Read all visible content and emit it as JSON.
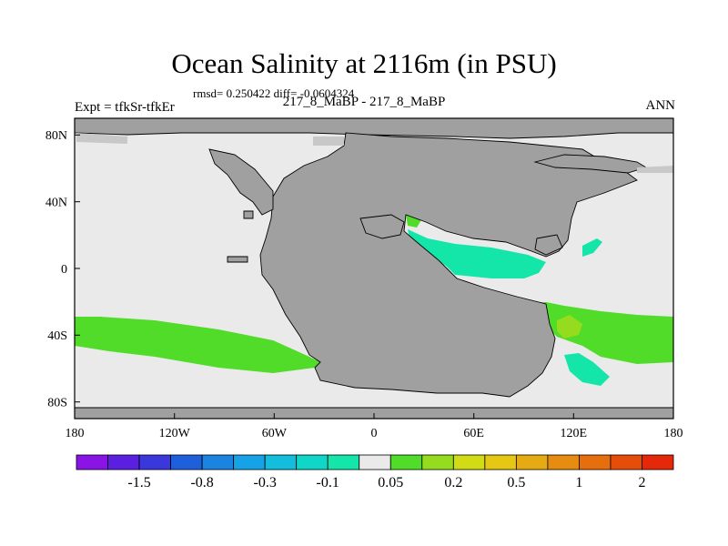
{
  "title": "Ocean Salinity at 2116m (in PSU)",
  "stats": "rmsd= 0.250422 diff= -0.0604324",
  "left_label": "Expt = tfkSr-tfkEr",
  "center_label": "217_8_MaBP - 217_8_MaBP",
  "right_label": "ANN",
  "axes": {
    "x_ticks": [
      {
        "value": -180,
        "label": "180"
      },
      {
        "value": -120,
        "label": "120W"
      },
      {
        "value": -60,
        "label": "60W"
      },
      {
        "value": 0,
        "label": "0"
      },
      {
        "value": 60,
        "label": "60E"
      },
      {
        "value": 120,
        "label": "120E"
      },
      {
        "value": 180,
        "label": "180"
      }
    ],
    "y_ticks": [
      {
        "value": 80,
        "label": "80N"
      },
      {
        "value": 40,
        "label": "40N"
      },
      {
        "value": 0,
        "label": "0"
      },
      {
        "value": -40,
        "label": "40S"
      },
      {
        "value": -80,
        "label": "80S"
      }
    ],
    "lon_range": [
      -180,
      180
    ],
    "lat_range": [
      -90,
      90
    ]
  },
  "colorbar": {
    "colors": [
      "#8a14e6",
      "#5a1fe0",
      "#3a38dc",
      "#1e5fdc",
      "#1a84e0",
      "#16a2e6",
      "#12bedc",
      "#10d6c8",
      "#14e6aa",
      "#eaeaea",
      "#50dc28",
      "#96dc1e",
      "#d2dc14",
      "#e6c814",
      "#e6aa12",
      "#e68c10",
      "#e66e0c",
      "#e64c0a",
      "#e6280a"
    ],
    "labels": [
      {
        "boundary": 2,
        "label": "-1.5"
      },
      {
        "boundary": 4,
        "label": "-0.8"
      },
      {
        "boundary": 6,
        "label": "-0.3"
      },
      {
        "boundary": 8,
        "label": "-0.1"
      },
      {
        "boundary": 10,
        "label": "0.05"
      },
      {
        "boundary": 12,
        "label": "0.2"
      },
      {
        "boundary": 14,
        "label": "0.5"
      },
      {
        "boundary": 16,
        "label": "1"
      },
      {
        "boundary": 18,
        "label": "2"
      }
    ]
  },
  "colors": {
    "land": "#a0a0a0",
    "ocean_neutral": "#eaeaea",
    "coast_line": "#000000"
  }
}
